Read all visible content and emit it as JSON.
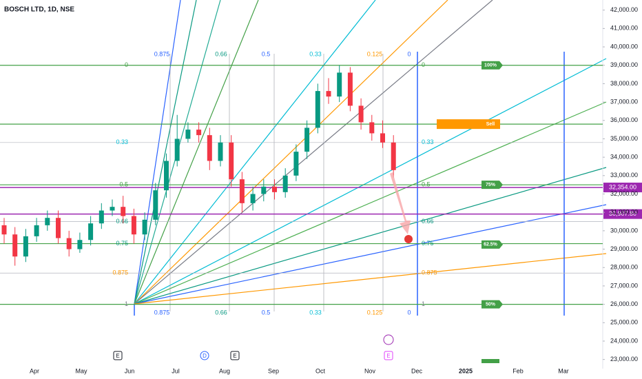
{
  "chart_data": {
    "type": "candlestick",
    "title": "BOSCH LTD, 1D, NSE",
    "months": [
      "Apr",
      "May",
      "Jun",
      "Jul",
      "Aug",
      "Sep",
      "Oct",
      "Nov",
      "Dec",
      "2025",
      "Feb",
      "Mar"
    ],
    "open": [
      30300,
      29800,
      28600,
      29700,
      30300,
      30700,
      29600,
      29000,
      29500,
      30400,
      31100,
      31300,
      30800,
      29800,
      30600,
      32200,
      33800,
      35000,
      35500,
      35200,
      33800,
      34800,
      32800,
      31500,
      32000,
      32400,
      32100,
      33000,
      34300,
      35600,
      37600,
      37300,
      38600,
      36800,
      35900,
      35300,
      34800
    ],
    "high": [
      30700,
      30200,
      30100,
      30700,
      31100,
      31100,
      30000,
      29900,
      30800,
      31500,
      31700,
      31900,
      31200,
      31000,
      32600,
      34200,
      36300,
      35900,
      35900,
      35600,
      35200,
      35200,
      33200,
      32400,
      32800,
      32800,
      33400,
      34700,
      36000,
      38000,
      38300,
      39000,
      38900,
      37200,
      36300,
      36000,
      35200
    ],
    "low": [
      29300,
      28100,
      28300,
      29400,
      30000,
      29300,
      28600,
      28800,
      29200,
      30100,
      30800,
      30400,
      29300,
      29500,
      30300,
      31800,
      33500,
      34800,
      34800,
      33300,
      33500,
      32400,
      31000,
      31100,
      31600,
      31700,
      31800,
      32700,
      33900,
      35300,
      36900,
      37000,
      36500,
      35500,
      34900,
      34500,
      32900
    ],
    "close": [
      29800,
      28600,
      29700,
      30300,
      30700,
      29600,
      29000,
      29500,
      30400,
      31100,
      31300,
      30800,
      29800,
      30600,
      32200,
      33800,
      35000,
      35500,
      35200,
      33800,
      34800,
      32800,
      31500,
      32000,
      32400,
      32100,
      33000,
      34300,
      35600,
      37600,
      37300,
      38600,
      36800,
      35900,
      35300,
      34800,
      33300
    ],
    "ylim": [
      22500,
      42550
    ],
    "yticks": [
      {
        "value": 23000,
        "label": "23,000.00"
      },
      {
        "value": 24000,
        "label": "24,000.00"
      },
      {
        "value": 25000,
        "label": "25,000.00"
      },
      {
        "value": 26000,
        "label": "26,000.00"
      },
      {
        "value": 27000,
        "label": "27,000.00"
      },
      {
        "value": 28000,
        "label": "28,000.00"
      },
      {
        "value": 29000,
        "label": "29,000.00"
      },
      {
        "value": 30000,
        "label": "30,000.00"
      },
      {
        "value": 31000,
        "label": "31,000.00"
      },
      {
        "value": 32000,
        "label": "32,000.00"
      },
      {
        "value": 33000,
        "label": "33,000.00"
      },
      {
        "value": 34000,
        "label": "34,000.00"
      },
      {
        "value": 35000,
        "label": "35,000.00"
      },
      {
        "value": 36000,
        "label": "36,000.00"
      },
      {
        "value": 37000,
        "label": "37,000.00"
      },
      {
        "value": 38000,
        "label": "38,000.00"
      },
      {
        "value": 39000,
        "label": "39,000.00"
      },
      {
        "value": 40000,
        "label": "40,000.00"
      },
      {
        "value": 41000,
        "label": "41,000.00"
      },
      {
        "value": 42000,
        "label": "42,000.00"
      }
    ],
    "fan_levels": [
      {
        "label": "0",
        "value": 39000
      },
      {
        "label": "0.33",
        "value": 34800
      },
      {
        "label": "0.5",
        "value": 32500
      },
      {
        "label": "0.66",
        "value": 30500
      },
      {
        "label": "0.75",
        "value": 29300
      },
      {
        "label": "0.875",
        "value": 27700
      },
      {
        "label": "1",
        "value": 26000
      }
    ],
    "time_levels": [
      "0.875",
      "0.66",
      "0.5",
      "0.33",
      "0.125",
      "0"
    ],
    "badges": [
      {
        "label": "100%",
        "value": 39000
      },
      {
        "label": "Sell",
        "value": 35800
      },
      {
        "label": "75%",
        "value": 32500
      },
      {
        "label": "62.5%",
        "value": 29250
      },
      {
        "label": "50%",
        "value": 26000
      }
    ],
    "price_lines": [
      {
        "value": 32354,
        "label": "32,354.00"
      },
      {
        "value": 30907.8,
        "label": "30,907.80"
      }
    ],
    "events": [
      "E",
      "D",
      "E",
      "E"
    ]
  }
}
